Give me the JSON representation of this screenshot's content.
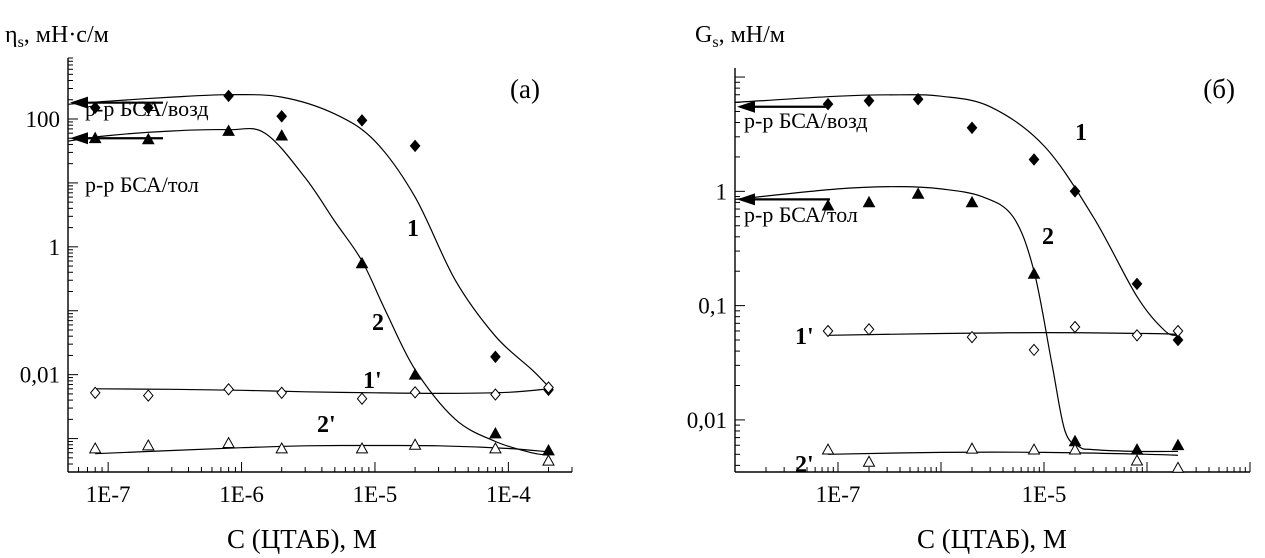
{
  "chart_data": [
    {
      "type": "scatter",
      "panel_label": "(а)",
      "ylabel": "η<sub>s</sub>, мН·с/м",
      "ylabel_main": "η",
      "ylabel_sub": "s",
      "ylabel_rest": ", мН·с/м",
      "xlabel": "C (ЦТАБ), М",
      "xscale": "log",
      "yscale": "log",
      "xlim": [
        5e-08,
        0.0003
      ],
      "ylim": [
        0.0003,
        900
      ],
      "xticks": [
        1e-07,
        1e-06,
        1e-05,
        0.0001
      ],
      "xtick_labels": [
        "1E-7",
        "1E-6",
        "1E-5",
        "1E-4"
      ],
      "yticks": [
        0.01,
        1,
        100
      ],
      "ytick_labels": [
        "0,01",
        "1",
        "100"
      ],
      "references": [
        {
          "label": "р-р БСА/возд",
          "value": 180
        },
        {
          "label": "р-р БСА/тол",
          "value": 50
        }
      ],
      "series": [
        {
          "name": "1",
          "marker": "diamond-filled",
          "x": [
            8e-08,
            2e-07,
            8e-07,
            2e-06,
            8e-06,
            2e-05,
            8e-05,
            0.0002
          ],
          "y": [
            150,
            150,
            230,
            110,
            95,
            38,
            0.019,
            0.0058
          ],
          "curve_x": [
            5e-08,
            1e-07,
            3e-07,
            8e-07,
            2e-06,
            5e-06,
            1e-05,
            2e-05,
            4e-05,
            8e-05,
            0.00015,
            0.0002
          ],
          "curve_y": [
            170,
            190,
            220,
            240,
            220,
            120,
            45,
            6,
            0.3,
            0.04,
            0.012,
            0.0065
          ]
        },
        {
          "name": "2",
          "marker": "triangle-filled",
          "x": [
            8e-08,
            2e-07,
            8e-07,
            2e-06,
            8e-06,
            2e-05,
            8e-05,
            0.0002
          ],
          "y": [
            50,
            48,
            65,
            55,
            0.55,
            0.01,
            0.0012,
            0.00065
          ],
          "curve_x": [
            5e-08,
            1e-07,
            3e-07,
            8e-07,
            1.5e-06,
            3e-06,
            5e-06,
            8e-06,
            1.2e-05,
            2e-05,
            4e-05,
            8e-05,
            0.00015,
            0.0002
          ],
          "curve_y": [
            45,
            55,
            65,
            68,
            60,
            12,
            2.5,
            0.6,
            0.1,
            0.012,
            0.002,
            0.0009,
            0.0006,
            0.00055
          ]
        },
        {
          "name": "1'",
          "marker": "diamond-open",
          "x": [
            8e-08,
            2e-07,
            8e-07,
            2e-06,
            8e-06,
            2e-05,
            8e-05,
            0.0002
          ],
          "y": [
            0.0052,
            0.0047,
            0.0059,
            0.0052,
            0.0042,
            0.0053,
            0.0049,
            0.0063
          ],
          "curve_x": [
            8e-08,
            3e-07,
            1e-06,
            3e-06,
            1e-05,
            3e-05,
            0.0001,
            0.0002
          ],
          "curve_y": [
            0.006,
            0.0059,
            0.0057,
            0.0054,
            0.0052,
            0.0051,
            0.0053,
            0.006
          ]
        },
        {
          "name": "2'",
          "marker": "triangle-open",
          "x": [
            8e-08,
            2e-07,
            8e-07,
            2e-06,
            8e-06,
            2e-05,
            8e-05,
            0.0002
          ],
          "y": [
            0.0007,
            0.00078,
            0.00085,
            0.0007,
            0.0007,
            0.0008,
            0.0007,
            0.00045
          ],
          "curve_x": [
            8e-08,
            3e-07,
            1e-06,
            3e-06,
            1e-05,
            3e-05,
            0.0001,
            0.0002
          ],
          "curve_y": [
            0.00058,
            0.00065,
            0.00072,
            0.00077,
            0.00078,
            0.00077,
            0.0007,
            0.00062
          ]
        }
      ]
    },
    {
      "type": "scatter",
      "panel_label": "(б)",
      "ylabel_main": "G",
      "ylabel_sub": "s",
      "ylabel_rest": ", мН/м",
      "xlabel": "C (ЦТАБ), М",
      "xscale": "log",
      "yscale": "log",
      "xlim": [
        1e-08,
        0.001
      ],
      "ylim": [
        0.0035,
        12
      ],
      "xticks": [
        1e-07,
        1e-05
      ],
      "xtick_labels": [
        "1E-7",
        "1E-5"
      ],
      "yticks": [
        0.01,
        0.1,
        1
      ],
      "ytick_labels": [
        "0,01",
        "0,1",
        "1"
      ],
      "references": [
        {
          "label": "р-р БСА/возд",
          "value": 5.5
        },
        {
          "label": "р-р БСА/тол",
          "value": 0.85
        }
      ],
      "series": [
        {
          "name": "1",
          "marker": "diamond-filled",
          "x": [
            8e-08,
            2e-07,
            6e-07,
            2e-06,
            8e-06,
            2e-05,
            8e-05,
            0.0002
          ],
          "y": [
            5.8,
            6.2,
            6.4,
            3.6,
            1.9,
            1.0,
            0.155,
            0.05
          ],
          "curve_x": [
            1e-08,
            1e-07,
            4e-07,
            1e-06,
            3e-06,
            1e-05,
            3e-05,
            8e-05,
            0.00015,
            0.0002
          ],
          "curve_y": [
            6.0,
            6.8,
            7.0,
            6.8,
            5.5,
            2.5,
            0.6,
            0.12,
            0.06,
            0.055
          ]
        },
        {
          "name": "2",
          "marker": "triangle-filled",
          "x": [
            8e-08,
            2e-07,
            6e-07,
            2e-06,
            8e-06,
            2e-05,
            8e-05,
            0.0002
          ],
          "y": [
            0.75,
            0.8,
            0.95,
            0.8,
            0.19,
            0.0065,
            0.0055,
            0.006
          ],
          "curve_x": [
            1e-08,
            1e-07,
            4e-07,
            1e-06,
            2.5e-06,
            5e-06,
            8e-06,
            1.2e-05,
            1.6e-05,
            2.2e-05,
            3e-05,
            8e-05,
            0.0002
          ],
          "curve_y": [
            0.85,
            1.05,
            1.1,
            1.05,
            0.9,
            0.6,
            0.2,
            0.03,
            0.008,
            0.0058,
            0.0055,
            0.0053,
            0.0053
          ]
        },
        {
          "name": "1'",
          "marker": "diamond-open",
          "x": [
            8e-08,
            2e-07,
            2e-06,
            8e-06,
            2e-05,
            8e-05,
            0.0002
          ],
          "y": [
            0.06,
            0.062,
            0.053,
            0.041,
            0.065,
            0.055,
            0.06
          ],
          "curve_x": [
            8e-08,
            1e-06,
            1e-05,
            0.0001,
            0.0002
          ],
          "curve_y": [
            0.055,
            0.057,
            0.058,
            0.057,
            0.056
          ]
        },
        {
          "name": "2'",
          "marker": "triangle-open",
          "x": [
            8e-08,
            2e-07,
            2e-06,
            8e-06,
            2e-05,
            8e-05,
            0.0002
          ],
          "y": [
            0.0055,
            0.0043,
            0.0056,
            0.0055,
            0.0055,
            0.0044,
            0.0038
          ],
          "curve_x": [
            8e-08,
            1e-06,
            1e-05,
            0.0001,
            0.0002
          ],
          "curve_y": [
            0.005,
            0.0052,
            0.0052,
            0.005,
            0.0049
          ]
        }
      ]
    }
  ]
}
